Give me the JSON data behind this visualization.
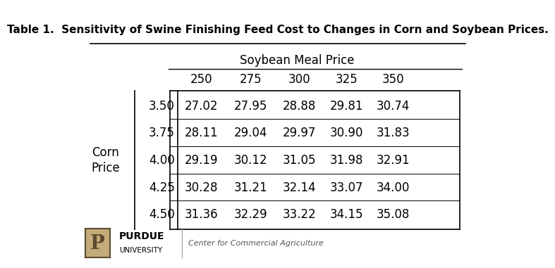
{
  "title": "Table 1.  Sensitivity of Swine Finishing Feed Cost to Changes in Corn and Soybean Prices.",
  "soybean_header": "Soybean Meal Price",
  "soybean_cols": [
    "250",
    "275",
    "300",
    "325",
    "350"
  ],
  "corn_label_line1": "Corn",
  "corn_label_line2": "Price",
  "corn_rows": [
    "3.50",
    "3.75",
    "4.00",
    "4.25",
    "4.50"
  ],
  "table_data": [
    [
      "27.02",
      "27.95",
      "28.88",
      "29.81",
      "30.74"
    ],
    [
      "28.11",
      "29.04",
      "29.97",
      "30.90",
      "31.83"
    ],
    [
      "29.19",
      "30.12",
      "31.05",
      "31.98",
      "32.91"
    ],
    [
      "30.28",
      "31.21",
      "32.14",
      "33.07",
      "34.00"
    ],
    [
      "31.36",
      "32.29",
      "33.22",
      "34.15",
      "35.08"
    ]
  ],
  "footer_text": "Center for Commercial Agriculture",
  "bg_color": "#ffffff",
  "text_color": "#000000",
  "title_fontsize": 11,
  "header_fontsize": 12,
  "cell_fontsize": 12,
  "label_fontsize": 12
}
